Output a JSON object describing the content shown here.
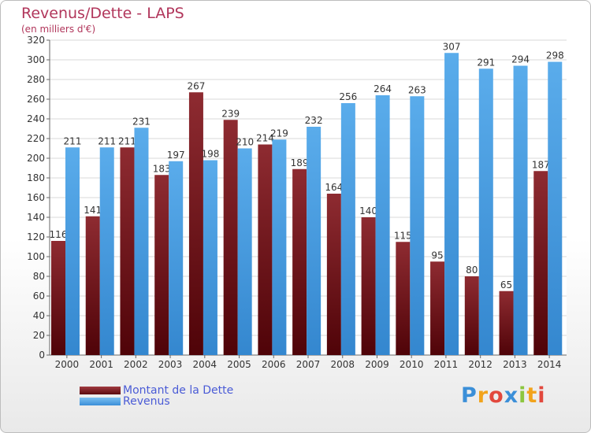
{
  "chart_data": {
    "type": "bar",
    "title": "Revenus/Dette - LAPS",
    "subtitle": "(en milliers d'€)",
    "categories": [
      "2000",
      "2001",
      "2002",
      "2003",
      "2004",
      "2005",
      "2006",
      "2007",
      "2008",
      "2009",
      "2010",
      "2011",
      "2012",
      "2013",
      "2014"
    ],
    "series": [
      {
        "name": "Montant de la Dette",
        "color": "#6b0f14",
        "values": [
          116,
          141,
          211,
          183,
          267,
          239,
          214,
          189,
          164,
          140,
          115,
          95,
          80,
          65,
          187
        ]
      },
      {
        "name": "Revenus",
        "color": "#4a9fe3",
        "values": [
          211,
          211,
          231,
          197,
          198,
          210,
          219,
          232,
          256,
          264,
          263,
          307,
          291,
          294,
          298
        ]
      }
    ],
    "ylim": [
      0,
      320
    ],
    "yticks": [
      0,
      20,
      40,
      60,
      80,
      100,
      120,
      140,
      160,
      180,
      200,
      220,
      240,
      260,
      280,
      300,
      320
    ],
    "grid": true,
    "legend_position": "bottom-left"
  },
  "legend": {
    "items": [
      {
        "label": "Montant de la Dette",
        "color": "#6b0f14"
      },
      {
        "label": "Revenus",
        "color": "#4a9fe3"
      }
    ]
  },
  "brand": {
    "letters": [
      "P",
      "r",
      "o",
      "x",
      "i",
      "t",
      "i"
    ],
    "colors": [
      "#3b8fd8",
      "#f2a31b",
      "#e2483d",
      "#3b8fd8",
      "#8cc63e",
      "#f2a31b",
      "#e2483d"
    ]
  }
}
